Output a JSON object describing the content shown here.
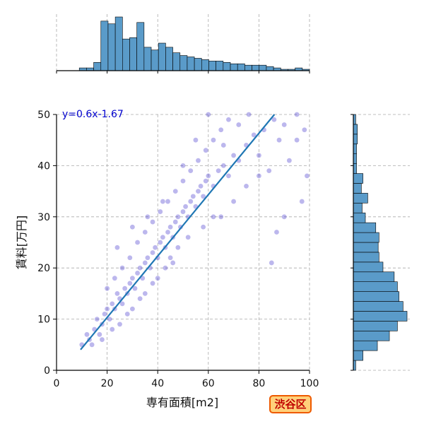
{
  "chart_data": {
    "type": "scatter",
    "title": "",
    "xlabel": "専有面積[m2]",
    "ylabel": "賃料[万円]",
    "xlim": [
      0,
      100
    ],
    "ylim": [
      0,
      50
    ],
    "xticks": [
      "0",
      "20",
      "40",
      "60",
      "80",
      "100"
    ],
    "yticks": [
      "0",
      "10",
      "20",
      "30",
      "40",
      "50"
    ],
    "grid": true,
    "regression": {
      "label": "y=0.6x-1.67",
      "slope": 0.6,
      "intercept": -1.67,
      "x_range": [
        9.5,
        100
      ]
    },
    "points": [
      [
        10,
        5
      ],
      [
        12,
        7
      ],
      [
        13,
        6
      ],
      [
        15,
        8
      ],
      [
        16,
        10
      ],
      [
        17,
        7
      ],
      [
        18,
        9
      ],
      [
        19,
        11
      ],
      [
        20,
        12
      ],
      [
        21,
        10
      ],
      [
        22,
        13
      ],
      [
        23,
        12
      ],
      [
        24,
        15
      ],
      [
        25,
        14
      ],
      [
        26,
        13
      ],
      [
        27,
        16
      ],
      [
        28,
        15
      ],
      [
        29,
        17
      ],
      [
        30,
        18
      ],
      [
        31,
        16
      ],
      [
        32,
        19
      ],
      [
        33,
        20
      ],
      [
        34,
        18
      ],
      [
        35,
        21
      ],
      [
        36,
        22
      ],
      [
        37,
        20
      ],
      [
        38,
        23
      ],
      [
        39,
        24
      ],
      [
        40,
        22
      ],
      [
        41,
        25
      ],
      [
        42,
        26
      ],
      [
        43,
        24
      ],
      [
        44,
        27
      ],
      [
        45,
        28
      ],
      [
        46,
        26
      ],
      [
        47,
        29
      ],
      [
        48,
        30
      ],
      [
        49,
        28
      ],
      [
        50,
        31
      ],
      [
        51,
        32
      ],
      [
        52,
        30
      ],
      [
        53,
        33
      ],
      [
        54,
        34
      ],
      [
        55,
        32
      ],
      [
        56,
        35
      ],
      [
        57,
        36
      ],
      [
        58,
        34
      ],
      [
        59,
        37
      ],
      [
        60,
        38
      ],
      [
        62,
        36
      ],
      [
        64,
        39
      ],
      [
        66,
        40
      ],
      [
        68,
        38
      ],
      [
        70,
        42
      ],
      [
        72,
        41
      ],
      [
        75,
        44
      ],
      [
        78,
        46
      ],
      [
        82,
        47
      ],
      [
        86,
        49
      ],
      [
        90,
        48
      ],
      [
        95,
        50
      ],
      [
        98,
        47
      ],
      [
        99,
        38
      ],
      [
        85,
        21
      ],
      [
        87,
        27
      ],
      [
        90,
        30
      ],
      [
        97,
        33
      ],
      [
        14,
        5
      ],
      [
        18,
        6
      ],
      [
        22,
        8
      ],
      [
        25,
        9
      ],
      [
        28,
        11
      ],
      [
        30,
        12
      ],
      [
        33,
        14
      ],
      [
        35,
        15
      ],
      [
        38,
        17
      ],
      [
        40,
        18
      ],
      [
        43,
        20
      ],
      [
        45,
        22
      ],
      [
        48,
        24
      ],
      [
        20,
        16
      ],
      [
        23,
        18
      ],
      [
        26,
        20
      ],
      [
        29,
        22
      ],
      [
        32,
        25
      ],
      [
        35,
        27
      ],
      [
        38,
        29
      ],
      [
        41,
        31
      ],
      [
        44,
        33
      ],
      [
        47,
        35
      ],
      [
        50,
        37
      ],
      [
        53,
        39
      ],
      [
        56,
        41
      ],
      [
        59,
        43
      ],
      [
        62,
        45
      ],
      [
        65,
        47
      ],
      [
        68,
        49
      ],
      [
        24,
        24
      ],
      [
        30,
        28
      ],
      [
        36,
        30
      ],
      [
        42,
        33
      ],
      [
        50,
        40
      ],
      [
        55,
        45
      ],
      [
        60,
        50
      ],
      [
        66,
        44
      ],
      [
        72,
        48
      ],
      [
        76,
        50
      ],
      [
        80,
        42
      ],
      [
        84,
        39
      ],
      [
        88,
        45
      ],
      [
        92,
        41
      ],
      [
        95,
        45
      ],
      [
        65,
        30
      ],
      [
        70,
        33
      ],
      [
        75,
        36
      ],
      [
        80,
        38
      ],
      [
        58,
        28
      ],
      [
        62,
        30
      ],
      [
        52,
        26
      ],
      [
        46,
        21
      ]
    ],
    "top_histogram": {
      "bin_edges": [
        9,
        100
      ],
      "counts": [
        2,
        2,
        6,
        36,
        34,
        39,
        23,
        24,
        35,
        17,
        15,
        20,
        17,
        13,
        11,
        10,
        9,
        8,
        7,
        7,
        6,
        5,
        5,
        4,
        4,
        4,
        3,
        2,
        1,
        1,
        2,
        1
      ]
    },
    "right_histogram": {
      "bin_edges": [
        0,
        50
      ],
      "counts": [
        3,
        12,
        30,
        45,
        55,
        67,
        62,
        57,
        55,
        51,
        37,
        32,
        31,
        32,
        28,
        15,
        11,
        18,
        10,
        12,
        4,
        4,
        4,
        5,
        5,
        3
      ]
    },
    "colors": {
      "scatter": "#2f1fc7",
      "line": "#1f77b4",
      "bar": "#5a9bc9",
      "bar_edge": "#000000",
      "grid": "#aaaaaa"
    }
  },
  "badge": {
    "label": "渋谷区"
  }
}
